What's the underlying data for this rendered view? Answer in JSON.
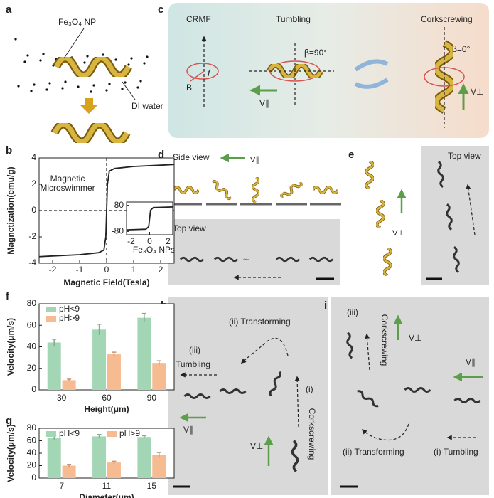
{
  "panel_a": {
    "label": "a",
    "np_label": "Fe₃O₄ NP",
    "water_label": "DI water"
  },
  "panel_c": {
    "label": "c",
    "crmf": "CRMF",
    "tumbling": "Tumbling",
    "corkscrewing": "Corkscrewing",
    "beta90": "β=90°",
    "beta0": "β=0°",
    "b": "B",
    "f": "f",
    "v_par": "V∥",
    "v_perp": "V⊥"
  },
  "panel_d": {
    "label": "d",
    "side_view": "Side view",
    "v_par": "V∥",
    "top_view": "Top view"
  },
  "panel_e": {
    "label": "e",
    "top_view": "Top view",
    "v_perp": "V⊥"
  },
  "panel_h": {
    "label": "h",
    "transforming": "(ii)  Transforming",
    "tumbling_num": "(iii)",
    "tumbling": "Tumbling",
    "corkscrewing_num": "(i)",
    "corkscrewing": "Corkscrewing",
    "v_par": "V∥",
    "v_perp": "V⊥"
  },
  "panel_i": {
    "label": "i",
    "corkscrewing_num": "(iii)",
    "corkscrewing": "Corkscrewing",
    "v_perp": "V⊥",
    "v_par": "V∥",
    "transforming": "(ii) Transforming",
    "tumbling": "(i) Tumbling"
  },
  "chart_data": [
    {
      "type": "line",
      "panel_label": "b",
      "xlabel": "Magnetic Field(Tesla)",
      "ylabel": "Magnetization(emu/g)",
      "annotation": [
        "Magnetic",
        "Microswimmer"
      ],
      "color": "#222222",
      "zero_lines": true,
      "x": [
        -2.5,
        -2,
        -1,
        -0.3,
        -0.1,
        -0.03,
        0,
        0.03,
        0.1,
        0.3,
        1,
        2,
        2.5
      ],
      "values": [
        -3.5,
        -3.45,
        -3.35,
        -3.2,
        -3.0,
        -2.0,
        0,
        2.0,
        3.0,
        3.2,
        3.35,
        3.45,
        3.5
      ],
      "xlim": [
        -2.5,
        2.5
      ],
      "xticks": [
        -2,
        -1,
        0,
        1,
        2
      ],
      "ylim": [
        -4,
        4
      ],
      "yticks": [
        -4,
        -2,
        0,
        2,
        4
      ]
    },
    {
      "type": "line",
      "annotation": [
        "Fe₃O₄ NPs"
      ],
      "color": "#222222",
      "x": [
        -2.5,
        -0.4,
        -0.1,
        0,
        0.1,
        0.4,
        2.5
      ],
      "values": [
        -70,
        -66,
        -50,
        0,
        50,
        66,
        70
      ],
      "xlim": [
        -2.5,
        2.5
      ],
      "xticks": [
        -2,
        0,
        2
      ],
      "ylim": [
        -100,
        100
      ],
      "yticks": [
        -80,
        80
      ]
    },
    {
      "type": "bar",
      "panel_label": "f",
      "xlabel": "Height(μm)",
      "ylabel": "Velocity(μm/s)",
      "legend_direction": "vertical",
      "categories": [
        "30",
        "60",
        "90"
      ],
      "series": [
        {
          "name": "pH<9",
          "color": "#a3d6b4",
          "values": [
            44,
            56,
            67
          ],
          "errors": [
            3,
            5,
            4
          ]
        },
        {
          "name": "pH>9",
          "color": "#f6bb90",
          "values": [
            9,
            33,
            25
          ],
          "errors": [
            1,
            2,
            2
          ]
        }
      ],
      "ylim": [
        0,
        80
      ],
      "yticks": [
        0,
        20,
        40,
        60,
        80
      ]
    },
    {
      "type": "bar",
      "panel_label": "g",
      "xlabel": "Diameter(μm)",
      "ylabel": "Velocity(μm/s)",
      "legend_direction": "horizontal",
      "categories": [
        "7",
        "11",
        "15"
      ],
      "series": [
        {
          "name": "pH<9",
          "color": "#a3d6b4",
          "values": [
            65,
            67,
            66
          ],
          "errors": [
            3,
            3,
            2
          ]
        },
        {
          "name": "pH>9",
          "color": "#f6bb90",
          "values": [
            20,
            25,
            37
          ],
          "errors": [
            2,
            2,
            4
          ]
        }
      ],
      "ylim": [
        0,
        80
      ],
      "yticks": [
        0,
        20,
        40,
        60,
        80
      ]
    }
  ]
}
